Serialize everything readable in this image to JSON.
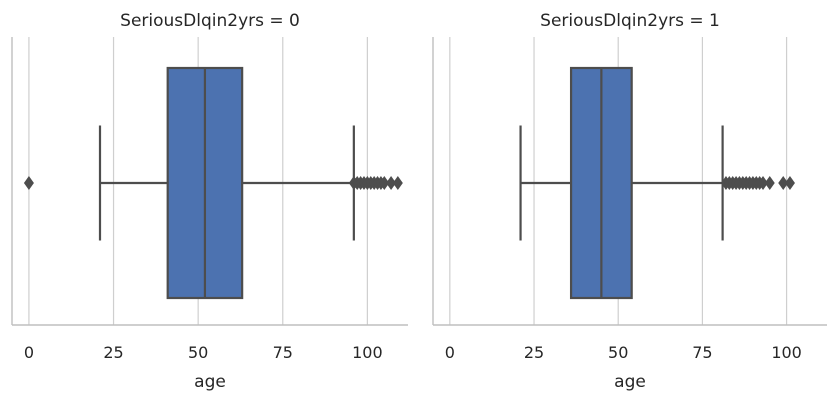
{
  "chart_data": [
    {
      "type": "box",
      "title": "SeriousDlqin2yrs = 0",
      "xlabel": "age",
      "ylabel": "",
      "xlim": [
        -5,
        112
      ],
      "xticks": [
        0,
        25,
        50,
        75,
        100
      ],
      "grid": "vertical",
      "box_color": "#4c72b0",
      "line_color": "#4d4d4d",
      "box": {
        "whisker_low": 21,
        "q1": 41,
        "median": 52,
        "q3": 63,
        "whisker_high": 96
      },
      "outliers": [
        0,
        96,
        97,
        98,
        99,
        100,
        101,
        102,
        103,
        104,
        105,
        107,
        109
      ]
    },
    {
      "type": "box",
      "title": "SeriousDlqin2yrs = 1",
      "xlabel": "age",
      "ylabel": "",
      "xlim": [
        -5,
        112
      ],
      "xticks": [
        0,
        25,
        50,
        75,
        100
      ],
      "grid": "vertical",
      "box_color": "#4c72b0",
      "line_color": "#4d4d4d",
      "box": {
        "whisker_low": 21,
        "q1": 36,
        "median": 45,
        "q3": 54,
        "whisker_high": 81
      },
      "outliers": [
        82,
        83,
        84,
        85,
        86,
        87,
        88,
        89,
        90,
        91,
        92,
        93,
        95,
        99,
        101
      ]
    }
  ]
}
